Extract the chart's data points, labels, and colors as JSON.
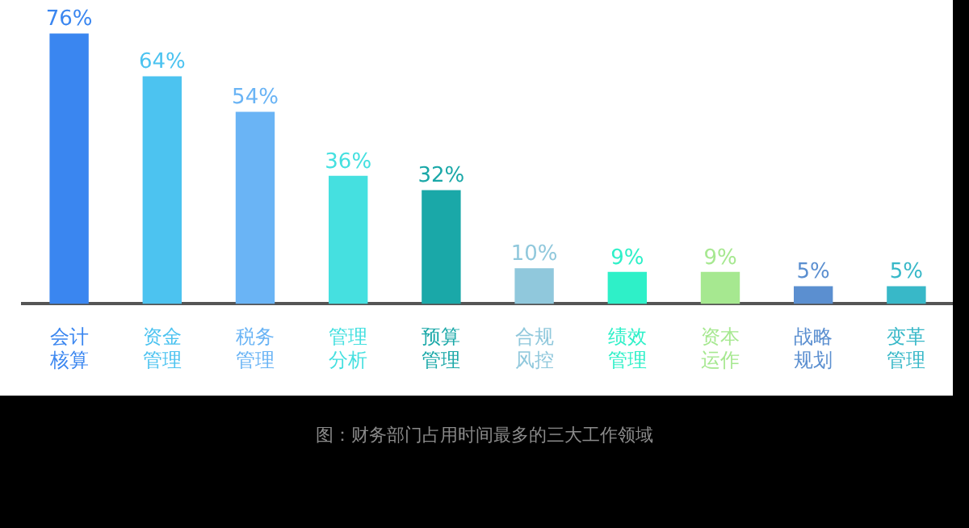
{
  "chart_data": {
    "type": "bar",
    "categories": [
      "会计核算",
      "资金管理",
      "税务管理",
      "管理分析",
      "预算管理",
      "合规风控",
      "绩效管理",
      "资本运作",
      "战略规划",
      "变革管理"
    ],
    "values": [
      76,
      64,
      54,
      36,
      32,
      10,
      9,
      9,
      5,
      5
    ],
    "colors": [
      "#3a86f0",
      "#4cc3f0",
      "#6ab4f5",
      "#45e0e0",
      "#1aa8a8",
      "#90c8dc",
      "#2ef0c8",
      "#a6e890",
      "#5b8fd0",
      "#38b8c8"
    ],
    "value_labels": [
      "76%",
      "64%",
      "54%",
      "36%",
      "32%",
      "10%",
      "9%",
      "9%",
      "5%",
      "5%"
    ],
    "grid": false,
    "legend": false,
    "annotations": [
      "图：财务部门占用时间最多的三大工作领域"
    ]
  }
}
